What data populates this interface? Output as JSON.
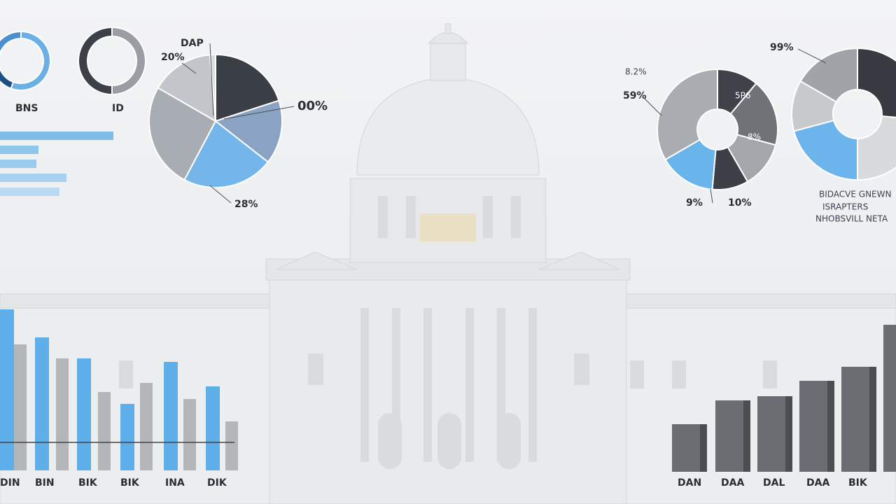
{
  "labels": {
    "top_left_1": "BNS",
    "top_left_2": "ID",
    "pie_top": "DAP",
    "pie_left": "20%",
    "pie_right": "00%",
    "pie_bottom": "28%",
    "right_top": "99%",
    "right_left_1": "8.2%",
    "right_left_2": "59%",
    "right_inner_1": "5P6",
    "right_inner_2": "8%",
    "right_bottom_1": "9%",
    "right_bottom_2": "10%",
    "legend": [
      "BIDACVE GNEWN",
      "ISRAPTERS",
      "NHOBSVILL NETA"
    ],
    "bottom_left": [
      "DIN",
      "BIN",
      "BIK",
      "BIK",
      "INA",
      "DIK"
    ],
    "bottom_right": [
      "DAN",
      "DAA",
      "DAL",
      "DAA",
      "BIK"
    ]
  }
}
